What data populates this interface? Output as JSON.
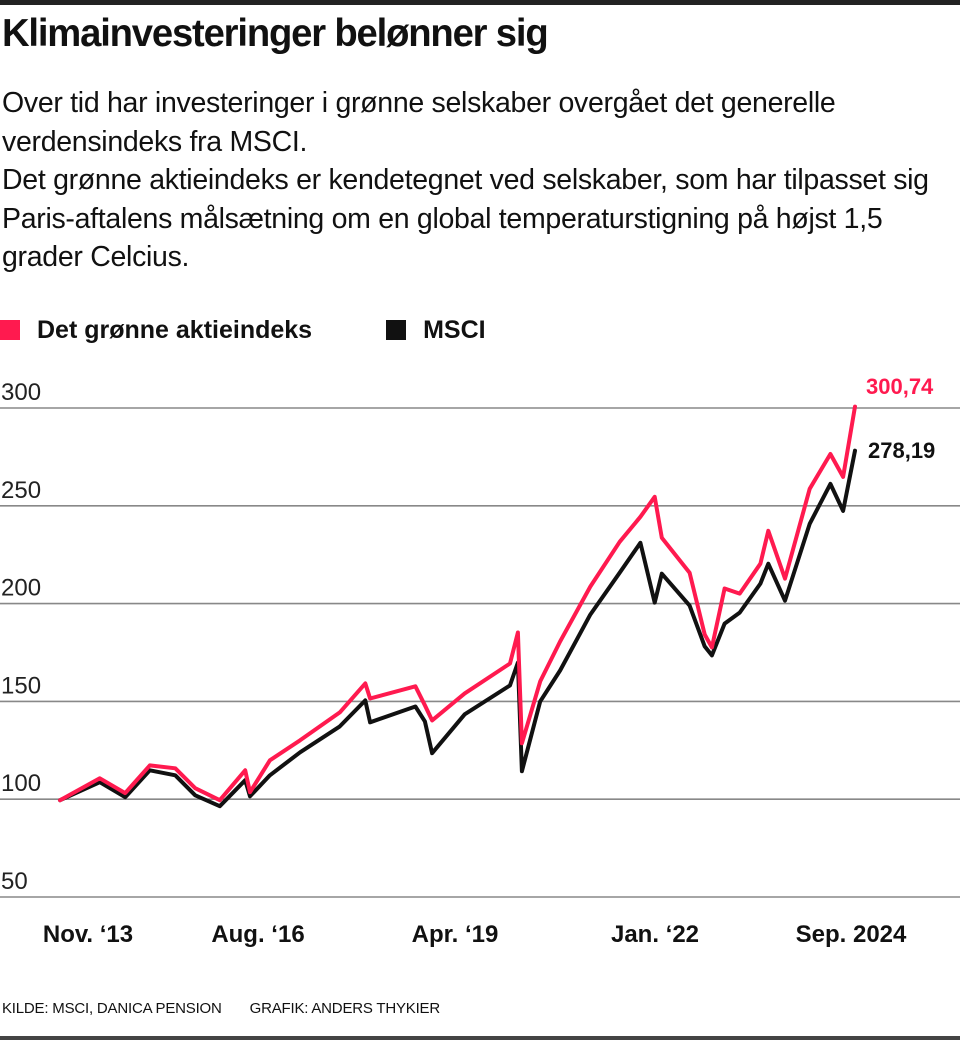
{
  "title": "Klimainvesteringer belønner sig",
  "subtitle": [
    "Over tid har investeringer i grønne selskaber overgået det generelle verdensindeks fra MSCI.",
    "Det grønne aktieindeks er kendetegnet ved selskaber, som har tilpasset sig Paris-aftalens målsætning om en global temperaturstigning på højst 1,5 grader Celcius."
  ],
  "colors": {
    "green_index": "#ff1a4f",
    "msci": "#111111",
    "grid": "#888888"
  },
  "source": {
    "kilde": "KILDE: MSCI, DANICA PENSION",
    "grafik": "GRAFIK: ANDERS THYKIER"
  },
  "chart_data": {
    "type": "line",
    "title": "",
    "xlabel": "",
    "ylabel": "",
    "ylim": [
      50,
      300
    ],
    "yticks": [
      "300",
      "250",
      "200",
      "150",
      "100",
      "50"
    ],
    "ytick_values": [
      300,
      250,
      200,
      150,
      100,
      50
    ],
    "grid": true,
    "legend": "top-left",
    "x_tick_labels": [
      "Nov. ‘13",
      "Aug. ‘16",
      "Apr. ‘19",
      "Jan. ‘22",
      "Sep. 2024"
    ],
    "x_tick_positions": [
      0.0,
      0.25,
      0.5,
      0.75,
      1.0
    ],
    "x": [
      0,
      0.05,
      0.082,
      0.113,
      0.145,
      0.17,
      0.201,
      0.233,
      0.239,
      0.264,
      0.302,
      0.352,
      0.384,
      0.39,
      0.447,
      0.459,
      0.468,
      0.509,
      0.566,
      0.576,
      0.581,
      0.604,
      0.629,
      0.667,
      0.704,
      0.73,
      0.748,
      0.757,
      0.792,
      0.811,
      0.82,
      0.836,
      0.855,
      0.881,
      0.891,
      0.912,
      0.943,
      0.969,
      0.985,
      1.0
    ],
    "series": [
      {
        "name": "Det grønne aktieindeks",
        "color": "#ff1a4f",
        "end_label": "300,74",
        "values": [
          99.5,
          110.7,
          103.1,
          117.3,
          115.8,
          105.6,
          99.5,
          114.8,
          103.6,
          119.9,
          130.1,
          144.4,
          159.2,
          151.5,
          157.7,
          148,
          140.3,
          154.1,
          169.4,
          185.2,
          128.6,
          160.2,
          180.6,
          208.7,
          231.6,
          244.4,
          254.6,
          233.7,
          215.8,
          184.2,
          177.6,
          207.7,
          205.1,
          220.4,
          237.2,
          212.8,
          258.7,
          276.5,
          264.8,
          300.74
        ]
      },
      {
        "name": "MSCI",
        "color": "#111111",
        "end_label": "278,19",
        "values": [
          99.5,
          108.7,
          101,
          114.8,
          112.2,
          102,
          96.4,
          109.7,
          101.5,
          112.2,
          124,
          137.2,
          150.5,
          139.3,
          147.4,
          139.8,
          123.5,
          143.4,
          158.2,
          169.9,
          114.3,
          150,
          165.8,
          194.4,
          215.8,
          231.1,
          200.5,
          215.3,
          199,
          178.1,
          173.5,
          189.8,
          195.4,
          210.2,
          220.4,
          201.5,
          240.8,
          261.2,
          247.4,
          278.19
        ]
      }
    ]
  }
}
